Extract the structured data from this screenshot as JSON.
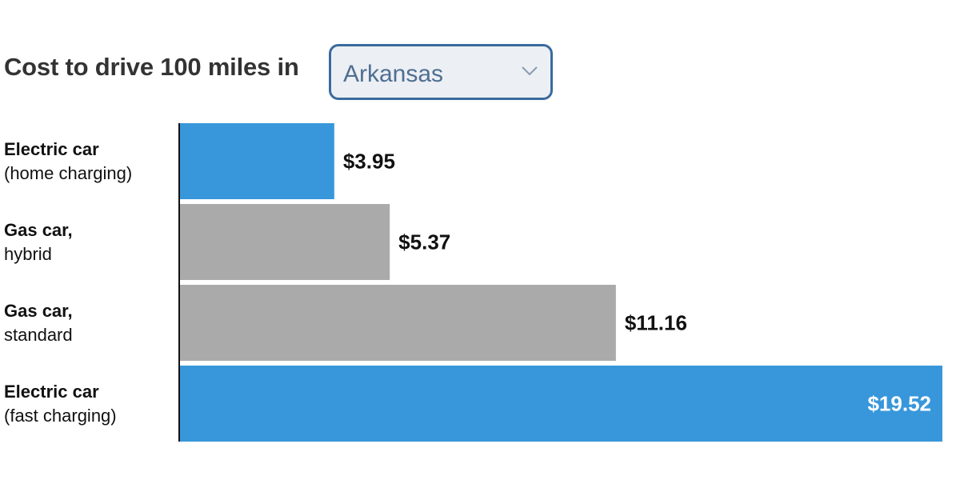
{
  "header": {
    "title": "Cost to drive 100 miles in",
    "state_select": {
      "selected": "Arkansas"
    }
  },
  "colors": {
    "electric": "#3897db",
    "gas": "#aaaaaa",
    "axis": "#111111"
  },
  "chart_data": {
    "type": "bar",
    "orientation": "horizontal",
    "categories": [
      "Electric car (home charging)",
      "Gas car, hybrid",
      "Gas car, standard",
      "Electric car (fast charging)"
    ],
    "category_lines": [
      [
        "Electric car",
        "(home charging)"
      ],
      [
        "Gas car,",
        "hybrid"
      ],
      [
        "Gas car,",
        "standard"
      ],
      [
        "Electric car",
        "(fast charging)"
      ]
    ],
    "values": [
      3.95,
      5.37,
      11.16,
      19.52
    ],
    "value_labels": [
      "$3.95",
      "$5.37",
      "$11.16",
      "$19.52"
    ],
    "bar_colors": [
      "#3897db",
      "#aaaaaa",
      "#aaaaaa",
      "#3897db"
    ],
    "title": "Cost to drive 100 miles in",
    "xlabel": "",
    "ylabel": "",
    "xlim": [
      0,
      19.52
    ],
    "grid": false
  }
}
